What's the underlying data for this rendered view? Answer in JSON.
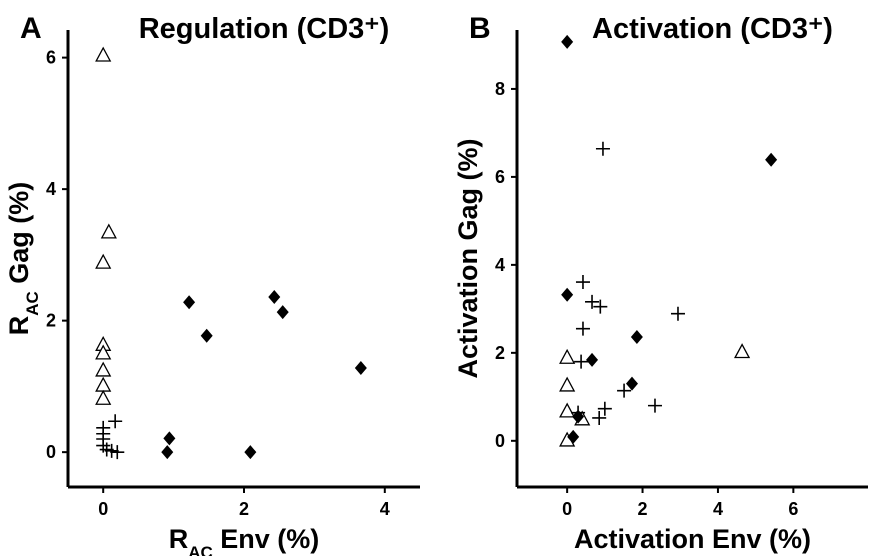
{
  "chart_data": [
    {
      "type": "scatter",
      "panel": "A",
      "title": "Regulation (CD3⁺)",
      "x_label": [
        "R",
        "AC",
        " Env (%)"
      ],
      "y_label": [
        "R",
        "AC",
        " Gag (%)"
      ],
      "xlim": [
        -0.5,
        4.5
      ],
      "ylim": [
        -0.53,
        6.42
      ],
      "xticks": [
        0,
        2,
        4
      ],
      "yticks": [
        0,
        2,
        4,
        6
      ],
      "series": [
        {
          "marker": "triangle",
          "color": "#000000",
          "x": [
            0,
            0.08,
            0,
            0,
            0,
            0,
            0,
            0
          ],
          "values": [
            6.04,
            3.35,
            2.89,
            1.64,
            1.51,
            1.25,
            1.02,
            0.82
          ]
        },
        {
          "marker": "diamond",
          "color": "#000000",
          "x": [
            1.22,
            1.47,
            2.43,
            2.55,
            3.66,
            0.94,
            0.91,
            2.09
          ],
          "values": [
            2.28,
            1.77,
            2.36,
            2.13,
            1.28,
            0.21,
            0,
            0
          ]
        },
        {
          "marker": "plus",
          "color": "#000000",
          "x": [
            0.17,
            0,
            0,
            0,
            0,
            0.05,
            0.12,
            0.2
          ],
          "values": [
            0.47,
            0.37,
            0.28,
            0.2,
            0.1,
            0.04,
            0.02,
            0
          ]
        }
      ]
    },
    {
      "type": "scatter",
      "panel": "B",
      "title": "Activation (CD3⁺)",
      "x_label": "Activation Env (%)",
      "y_label": "Activation Gag (%)",
      "xlim": [
        -1.33,
        7.98
      ],
      "ylim": [
        -1.05,
        9.34
      ],
      "xticks": [
        0,
        2,
        4,
        6
      ],
      "yticks": [
        0,
        2,
        4,
        6,
        8
      ],
      "series": [
        {
          "marker": "triangle",
          "color": "#000000",
          "x": [
            0,
            0,
            0,
            0,
            0.4,
            4.64
          ],
          "values": [
            1.9,
            1.27,
            0.68,
            0.02,
            0.5,
            2.03
          ]
        },
        {
          "marker": "diamond",
          "color": "#000000",
          "x": [
            0,
            5.41,
            0,
            0.66,
            1.85,
            1.72,
            0.29,
            0.16
          ],
          "values": [
            9.07,
            6.39,
            3.32,
            1.84,
            2.36,
            1.3,
            0.55,
            0.09
          ]
        },
        {
          "marker": "plus",
          "color": "#000000",
          "x": [
            0.95,
            0.42,
            0.66,
            0.88,
            0.42,
            2.94,
            0.37,
            0.29,
            1.0,
            0.85,
            1.51,
            2.33
          ],
          "values": [
            6.64,
            3.61,
            3.16,
            3.05,
            2.55,
            2.89,
            1.8,
            0.64,
            0.73,
            0.52,
            1.14,
            0.8
          ]
        }
      ]
    }
  ]
}
